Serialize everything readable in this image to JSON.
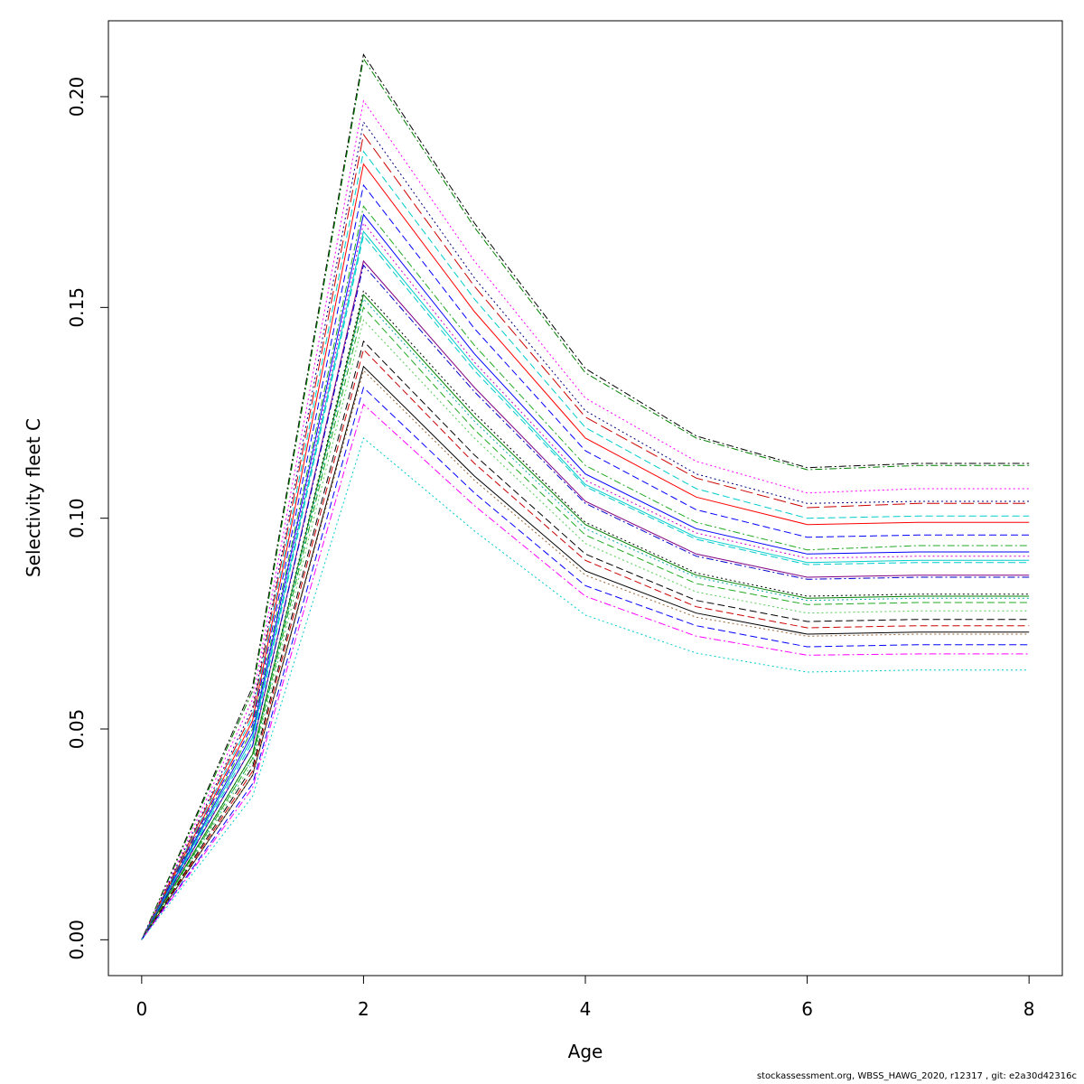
{
  "footer": "stockassessment.org, WBSS_HAWG_2020, r12317 , git: e2a30d42316c",
  "chart_data": {
    "type": "line",
    "xlabel": "Age",
    "ylabel": "Selectivity fleet C",
    "xlim": [
      -0.3,
      8.3
    ],
    "ylim": [
      -0.0085,
      0.218
    ],
    "x_ticks": [
      "0",
      "2",
      "4",
      "6",
      "8"
    ],
    "y_ticks": [
      "0.00",
      "0.05",
      "0.10",
      "0.15",
      "0.20"
    ],
    "grid": false,
    "legend": "none",
    "x": [
      0,
      1,
      2,
      3,
      4,
      5,
      6,
      7,
      8
    ],
    "series": [
      {
        "color": "#000000",
        "dash": "dotdash",
        "values": [
          0,
          0.06,
          0.21,
          0.17,
          0.1355,
          0.1195,
          0.112,
          0.113,
          0.113
        ]
      },
      {
        "color": "#008000",
        "dash": "dotdash",
        "values": [
          0,
          0.059,
          0.209,
          0.169,
          0.1345,
          0.119,
          0.1115,
          0.1125,
          0.1125
        ]
      },
      {
        "color": "#ff00ff",
        "dash": "dotted",
        "values": [
          0,
          0.057,
          0.199,
          0.161,
          0.1285,
          0.1135,
          0.106,
          0.107,
          0.107
        ]
      },
      {
        "color": "#000080",
        "dash": "dotted",
        "values": [
          0,
          0.055,
          0.194,
          0.157,
          0.1255,
          0.1105,
          0.1035,
          0.104,
          0.104
        ]
      },
      {
        "color": "#cc0000",
        "dash": "longdash",
        "values": [
          0,
          0.054,
          0.191,
          0.155,
          0.124,
          0.1095,
          0.1025,
          0.1035,
          0.1035
        ]
      },
      {
        "color": "#00cccc",
        "dash": "dashed",
        "values": [
          0,
          0.053,
          0.187,
          0.152,
          0.1215,
          0.107,
          0.1,
          0.1005,
          0.1005
        ]
      },
      {
        "color": "#ff0000",
        "dash": "solid",
        "values": [
          0,
          0.052,
          0.184,
          0.149,
          0.119,
          0.105,
          0.0985,
          0.099,
          0.099
        ]
      },
      {
        "color": "#0000ff",
        "dash": "dashed",
        "values": [
          0,
          0.051,
          0.179,
          0.145,
          0.116,
          0.102,
          0.0955,
          0.096,
          0.096
        ]
      },
      {
        "color": "#22aa22",
        "dash": "dotdash",
        "values": [
          0,
          0.05,
          0.174,
          0.141,
          0.1125,
          0.099,
          0.0925,
          0.0935,
          0.0935
        ]
      },
      {
        "color": "#0000ff",
        "dash": "solid",
        "values": [
          0,
          0.049,
          0.172,
          0.139,
          0.1105,
          0.0975,
          0.0915,
          0.092,
          0.092
        ]
      },
      {
        "color": "#cc00cc",
        "dash": "dotted",
        "values": [
          0,
          0.048,
          0.17,
          0.137,
          0.109,
          0.0965,
          0.0905,
          0.091,
          0.091
        ]
      },
      {
        "color": "#00cccc",
        "dash": "solid",
        "values": [
          0,
          0.048,
          0.168,
          0.136,
          0.108,
          0.0955,
          0.0895,
          0.09,
          0.09
        ]
      },
      {
        "color": "#00cccc",
        "dash": "dashed",
        "values": [
          0,
          0.047,
          0.167,
          0.135,
          0.1075,
          0.095,
          0.089,
          0.0895,
          0.0895
        ]
      },
      {
        "color": "#800080",
        "dash": "solid",
        "values": [
          0,
          0.046,
          0.161,
          0.131,
          0.104,
          0.0915,
          0.086,
          0.0865,
          0.0865
        ]
      },
      {
        "color": "#0000cc",
        "dash": "dotdash",
        "values": [
          0,
          0.046,
          0.16,
          0.13,
          0.1035,
          0.091,
          0.0855,
          0.086,
          0.086
        ]
      },
      {
        "color": "#000000",
        "dash": "dotted",
        "values": [
          0,
          0.044,
          0.154,
          0.125,
          0.099,
          0.087,
          0.0815,
          0.082,
          0.082
        ]
      },
      {
        "color": "#008000",
        "dash": "solid",
        "values": [
          0,
          0.044,
          0.153,
          0.124,
          0.0985,
          0.0865,
          0.081,
          0.0815,
          0.0815
        ]
      },
      {
        "color": "#00aaaa",
        "dash": "dotted",
        "values": [
          0,
          0.043,
          0.152,
          0.123,
          0.0975,
          0.086,
          0.0805,
          0.081,
          0.081
        ]
      },
      {
        "color": "#22aa22",
        "dash": "dashed",
        "values": [
          0,
          0.043,
          0.15,
          0.121,
          0.096,
          0.0845,
          0.0795,
          0.08,
          0.08
        ]
      },
      {
        "color": "#55cc55",
        "dash": "dotted",
        "values": [
          0,
          0.042,
          0.147,
          0.119,
          0.094,
          0.0825,
          0.0775,
          0.078,
          0.078
        ]
      },
      {
        "color": "#000000",
        "dash": "dashed",
        "values": [
          0,
          0.041,
          0.142,
          0.115,
          0.0915,
          0.0805,
          0.0755,
          0.076,
          0.076
        ]
      },
      {
        "color": "#cc0000",
        "dash": "dashed",
        "values": [
          0,
          0.04,
          0.14,
          0.113,
          0.09,
          0.079,
          0.074,
          0.0745,
          0.0745
        ]
      },
      {
        "color": "#000000",
        "dash": "solid",
        "values": [
          0,
          0.039,
          0.136,
          0.11,
          0.0875,
          0.0775,
          0.0725,
          0.073,
          0.073
        ]
      },
      {
        "color": "#996633",
        "dash": "dotted",
        "values": [
          0,
          0.039,
          0.135,
          0.109,
          0.0865,
          0.0765,
          0.072,
          0.0725,
          0.0725
        ]
      },
      {
        "color": "#0000ff",
        "dash": "dashed",
        "values": [
          0,
          0.037,
          0.131,
          0.106,
          0.084,
          0.0745,
          0.0695,
          0.07,
          0.07
        ]
      },
      {
        "color": "#ff00ff",
        "dash": "dotdash",
        "values": [
          0,
          0.036,
          0.127,
          0.103,
          0.0815,
          0.072,
          0.0675,
          0.0678,
          0.0678
        ]
      },
      {
        "color": "#00cccc",
        "dash": "dotted",
        "values": [
          0,
          0.034,
          0.119,
          0.097,
          0.077,
          0.068,
          0.0635,
          0.064,
          0.064
        ]
      }
    ]
  }
}
